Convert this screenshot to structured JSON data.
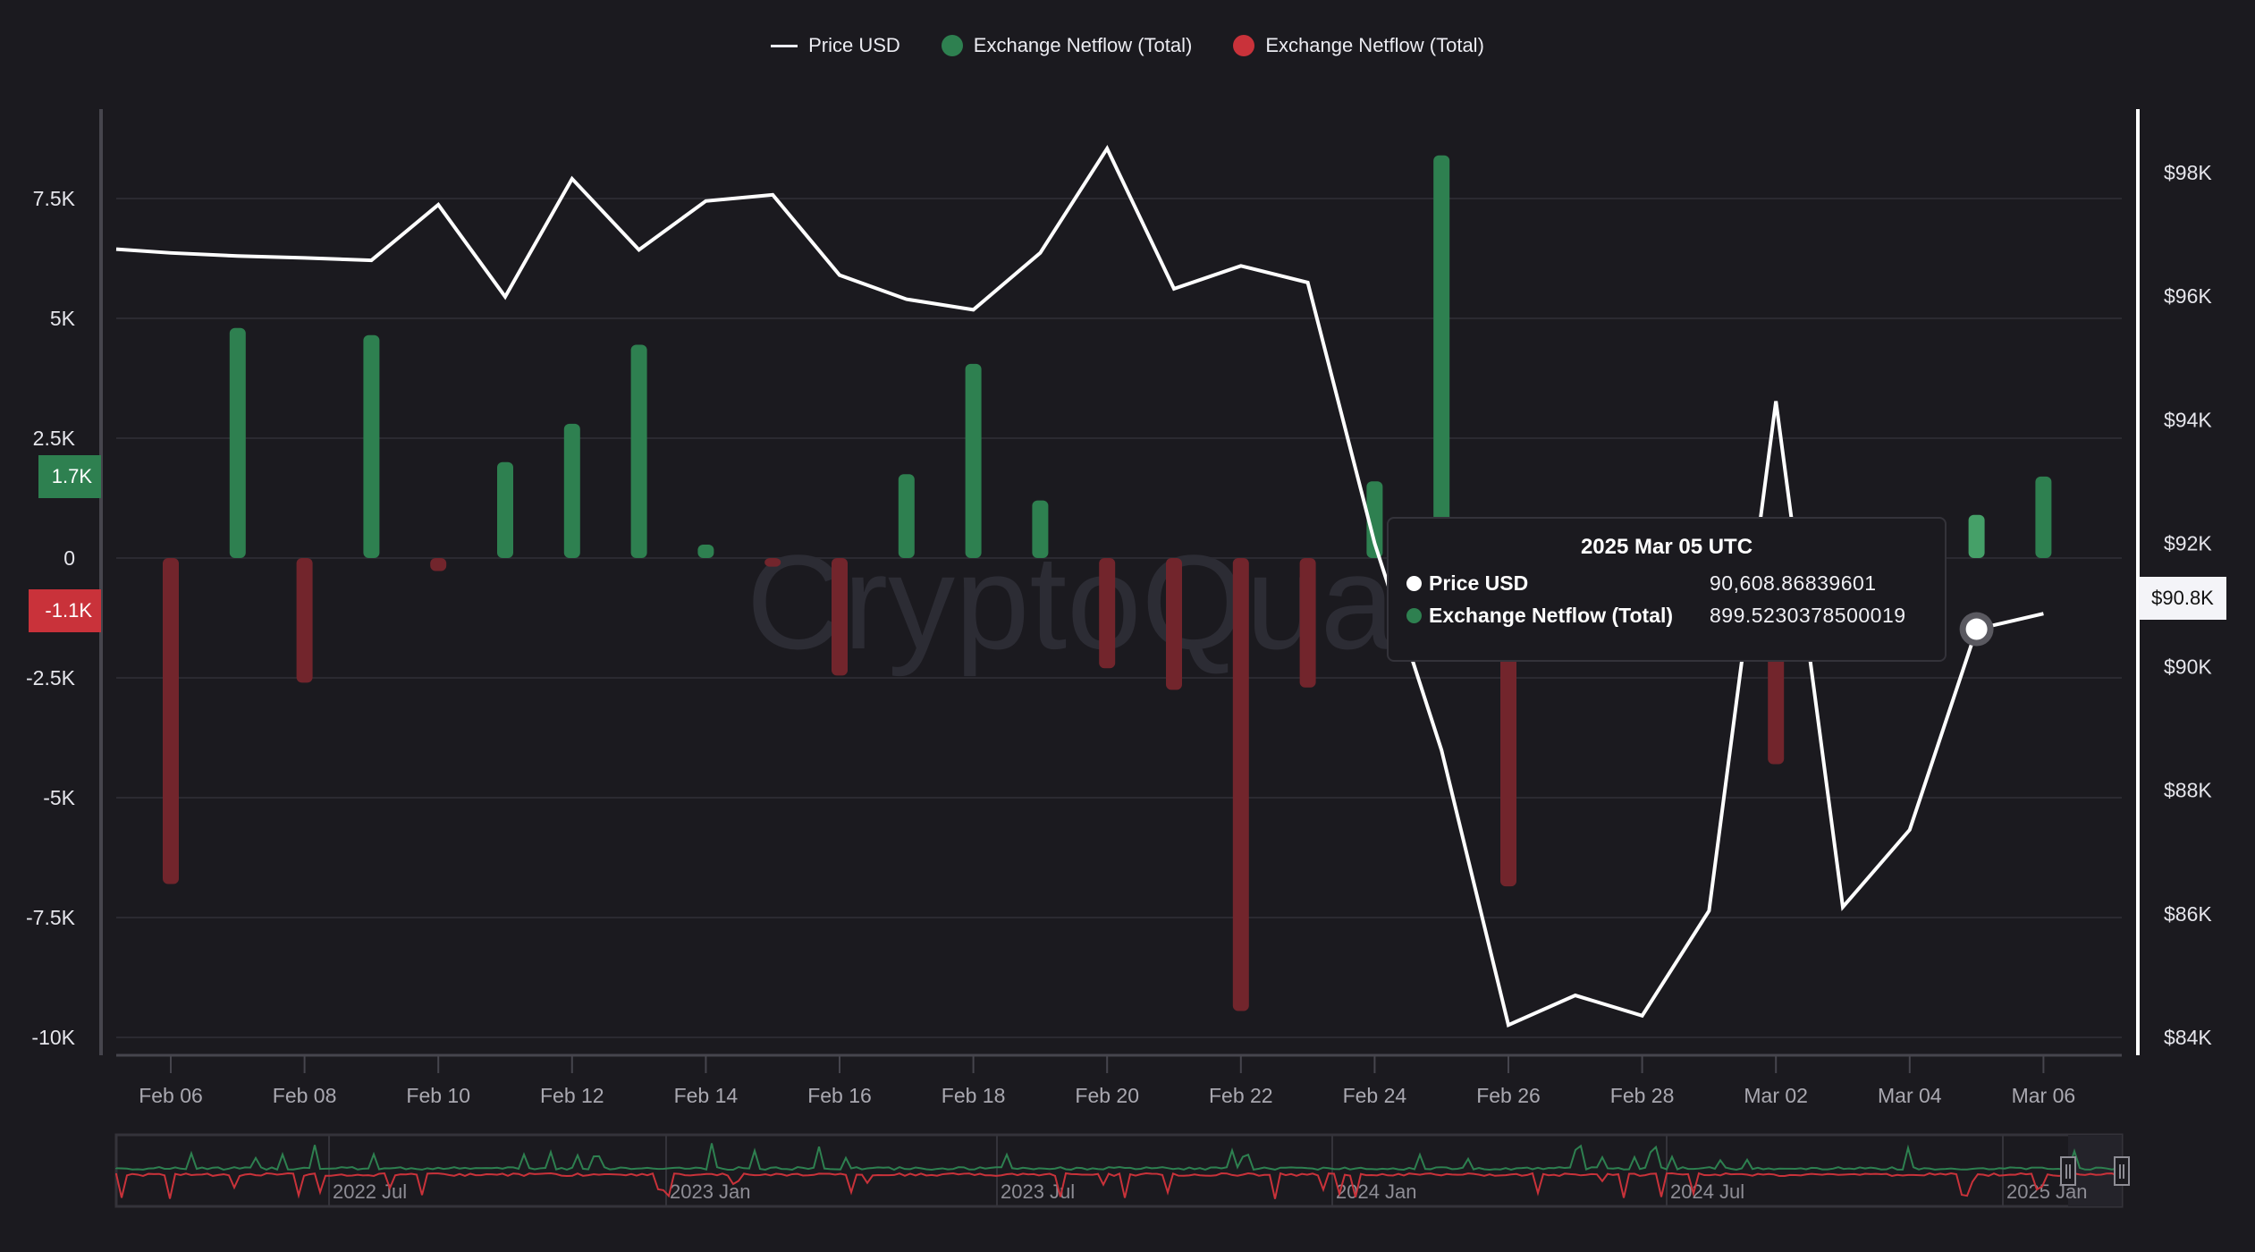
{
  "legend": {
    "items": [
      {
        "label": "Price USD",
        "type": "line",
        "color": "#ececf2"
      },
      {
        "label": "Exchange Netflow (Total)",
        "type": "dot",
        "color": "#2e8050"
      },
      {
        "label": "Exchange Netflow (Total)",
        "type": "dot",
        "color": "#c9323a"
      }
    ]
  },
  "watermark": "CryptoQuant",
  "colors": {
    "background": "#1b1a1f",
    "grid": "#2b2a31",
    "axis": "#46454d",
    "positive_bar": "#2e8050",
    "positive_bar_hover": "#45a068",
    "negative_bar": "#72252c",
    "price_line": "#ffffff",
    "badge_positive": "#2e8050",
    "badge_negative": "#c9323a",
    "x_label": "#a9a8b0"
  },
  "left_axis": {
    "ticks": [
      {
        "label": "7.5K",
        "value": 7500
      },
      {
        "label": "5K",
        "value": 5000
      },
      {
        "label": "2.5K",
        "value": 2500
      },
      {
        "label": "0",
        "value": 0
      },
      {
        "label": "-2.5K",
        "value": -2500
      },
      {
        "label": "-5K",
        "value": -5000
      },
      {
        "label": "-7.5K",
        "value": -7500
      },
      {
        "label": "-10K",
        "value": -10000
      }
    ],
    "badges": [
      {
        "label": "1.7K",
        "value": 1700,
        "color": "#2e8050"
      },
      {
        "label": "-1.1K",
        "value": -1100,
        "color": "#c9323a"
      }
    ]
  },
  "right_axis": {
    "ticks": [
      {
        "label": "$98K",
        "value": 98000
      },
      {
        "label": "$96K",
        "value": 96000
      },
      {
        "label": "$94K",
        "value": 94000
      },
      {
        "label": "$92K",
        "value": 92000
      },
      {
        "label": "$90K",
        "value": 90000
      },
      {
        "label": "$88K",
        "value": 88000
      },
      {
        "label": "$86K",
        "value": 86000
      },
      {
        "label": "$84K",
        "value": 84000
      }
    ],
    "badge": {
      "label": "$90.8K",
      "value": 90800
    }
  },
  "tooltip": {
    "title": "2025 Mar 05 UTC",
    "rows": [
      {
        "label": "Price USD",
        "value": "90,608.86839601",
        "color": "#ffffff"
      },
      {
        "label": "Exchange Netflow (Total)",
        "value": "899.5230378500019",
        "color": "#2e8050"
      }
    ]
  },
  "navigator": {
    "labels": [
      "2022 Jul",
      "2023 Jan",
      "2023 Jul",
      "2024 Jan",
      "2024 Jul",
      "2025 Jan"
    ]
  },
  "chart_data": {
    "type": "bar+line",
    "title": "",
    "xlabel": "",
    "ylabel_left": "Exchange Netflow (Total)",
    "ylabel_right": "Price USD",
    "ylim_left": [
      -10000,
      8700
    ],
    "ylim_right": [
      84000,
      98900
    ],
    "grid": true,
    "legend_position": "top-center",
    "x_tick_labels": [
      "Feb 06",
      "Feb 08",
      "Feb 10",
      "Feb 12",
      "Feb 14",
      "Feb 16",
      "Feb 18",
      "Feb 20",
      "Feb 22",
      "Feb 24",
      "Feb 26",
      "Feb 28",
      "Mar 02",
      "Mar 04",
      "Mar 06"
    ],
    "categories": [
      "Feb 06",
      "Feb 07",
      "Feb 08",
      "Feb 09",
      "Feb 10",
      "Feb 11",
      "Feb 12",
      "Feb 13",
      "Feb 14",
      "Feb 15",
      "Feb 16",
      "Feb 17",
      "Feb 18",
      "Feb 19",
      "Feb 20",
      "Feb 21",
      "Feb 22",
      "Feb 23",
      "Feb 24",
      "Feb 25",
      "Feb 26",
      "Feb 27",
      "Feb 28",
      "Mar 01",
      "Mar 02",
      "Mar 03",
      "Mar 04",
      "Mar 05",
      "Mar 06"
    ],
    "series": [
      {
        "name": "Exchange Netflow (Total)",
        "type": "bar",
        "axis": "left",
        "values": [
          -6800,
          4800,
          -2600,
          4650,
          -270,
          2000,
          2800,
          4450,
          280,
          -180,
          -2450,
          1750,
          4050,
          1200,
          -2300,
          -2750,
          -9450,
          -2700,
          1600,
          8400,
          -6850,
          -1900,
          -1800,
          -300,
          -4300,
          -2150,
          -200,
          899.52,
          1700
        ]
      },
      {
        "name": "Price USD",
        "type": "line",
        "axis": "right",
        "values": [
          96700,
          96650,
          96620,
          96580,
          97480,
          95990,
          97900,
          96750,
          97540,
          97640,
          96340,
          95950,
          95780,
          96700,
          98390,
          96120,
          96490,
          96220,
          92000,
          88650,
          84200,
          84680,
          84350,
          86050,
          94300,
          86110,
          87360,
          90608.87,
          90860
        ]
      }
    ],
    "hover": {
      "index": 27,
      "date": "2025 Mar 05 UTC",
      "price": 90608.86839601,
      "netflow": 899.5230378500019
    }
  }
}
